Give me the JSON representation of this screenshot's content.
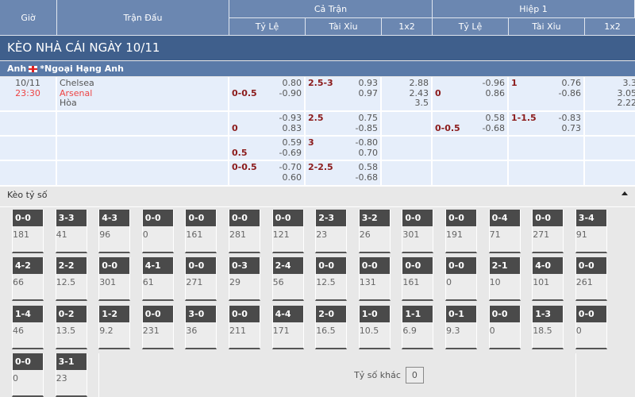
{
  "header": {
    "gio": "Giờ",
    "tran_dau": "Trận Đấu",
    "ca_tran": "Cả Trận",
    "hiep1": "Hiệp 1",
    "ty_le": "Tỷ Lệ",
    "tai_xiu": "Tài Xỉu",
    "x12": "1x2"
  },
  "title": "KÈO NHÀ CÁI NGÀY 10/11",
  "league": {
    "country": "Anh",
    "name": "*Ngoại Hạng Anh"
  },
  "match": {
    "date": "10/11",
    "time": "23:30",
    "home": "Chelsea",
    "away": "Arsenal",
    "draw": "Hòa"
  },
  "rows": [
    {
      "ft_hcap": {
        "top": "",
        "bottom": "0-0.5",
        "v1": "0.80",
        "v2": "-0.90"
      },
      "ft_ou": {
        "top": "2.5-3",
        "bottom": "",
        "v1": "0.93",
        "v2": "0.97"
      },
      "ft_1x2": [
        "2.88",
        "2.43",
        "3.5"
      ],
      "h1_hcap": {
        "top": "",
        "bottom": "0",
        "v1": "-0.96",
        "v2": "0.86"
      },
      "h1_ou": {
        "top": "1",
        "bottom": "",
        "v1": "0.76",
        "v2": "-0.86"
      },
      "h1_1x2": [
        "3.3",
        "3.05",
        "2.22"
      ]
    },
    {
      "ft_hcap": {
        "top": "",
        "bottom": "0",
        "v1": "-0.93",
        "v2": "0.83"
      },
      "ft_ou": {
        "top": "2.5",
        "bottom": "",
        "v1": "0.75",
        "v2": "-0.85"
      },
      "ft_1x2": [
        "",
        "",
        ""
      ],
      "h1_hcap": {
        "top": "",
        "bottom": "0-0.5",
        "v1": "0.58",
        "v2": "-0.68"
      },
      "h1_ou": {
        "top": "1-1.5",
        "bottom": "",
        "v1": "-0.83",
        "v2": "0.73"
      },
      "h1_1x2": [
        "",
        "",
        ""
      ]
    },
    {
      "ft_hcap": {
        "top": "",
        "bottom": "0.5",
        "v1": "0.59",
        "v2": "-0.69"
      },
      "ft_ou": {
        "top": "3",
        "bottom": "",
        "v1": "-0.80",
        "v2": "0.70"
      },
      "ft_1x2": [
        "",
        "",
        ""
      ],
      "h1_hcap": {
        "top": "",
        "bottom": "",
        "v1": "",
        "v2": ""
      },
      "h1_ou": {
        "top": "",
        "bottom": "",
        "v1": "",
        "v2": ""
      },
      "h1_1x2": [
        "",
        "",
        ""
      ]
    },
    {
      "ft_hcap": {
        "top": "0-0.5",
        "bottom": "",
        "v1": "-0.70",
        "v2": "0.60"
      },
      "ft_ou": {
        "top": "2-2.5",
        "bottom": "",
        "v1": "0.58",
        "v2": "-0.68"
      },
      "ft_1x2": [
        "",
        "",
        ""
      ],
      "h1_hcap": {
        "top": "",
        "bottom": "",
        "v1": "",
        "v2": ""
      },
      "h1_ou": {
        "top": "",
        "bottom": "",
        "v1": "",
        "v2": ""
      },
      "h1_1x2": [
        "",
        "",
        ""
      ]
    }
  ],
  "score_section": {
    "title": "Kèo tỷ số",
    "other_label": "Tỷ số khác",
    "other_value": "0"
  },
  "scores": [
    [
      "0-0",
      "181"
    ],
    [
      "3-3",
      "41"
    ],
    [
      "4-3",
      "96"
    ],
    [
      "0-0",
      "0"
    ],
    [
      "0-0",
      "161"
    ],
    [
      "0-0",
      "281"
    ],
    [
      "0-0",
      "121"
    ],
    [
      "2-3",
      "23"
    ],
    [
      "3-2",
      "26"
    ],
    [
      "0-0",
      "301"
    ],
    [
      "0-0",
      "191"
    ],
    [
      "0-4",
      "71"
    ],
    [
      "0-0",
      "271"
    ],
    [
      "3-4",
      "91"
    ],
    [
      "4-2",
      "66"
    ],
    [
      "2-2",
      "12.5"
    ],
    [
      "0-0",
      "301"
    ],
    [
      "4-1",
      "61"
    ],
    [
      "0-0",
      "271"
    ],
    [
      "0-3",
      "29"
    ],
    [
      "2-4",
      "56"
    ],
    [
      "0-0",
      "12.5"
    ],
    [
      "0-0",
      "131"
    ],
    [
      "0-0",
      "161"
    ],
    [
      "0-0",
      "0"
    ],
    [
      "2-1",
      "10"
    ],
    [
      "4-0",
      "101"
    ],
    [
      "0-0",
      "261"
    ],
    [
      "1-4",
      "46"
    ],
    [
      "0-2",
      "13.5"
    ],
    [
      "1-2",
      "9.2"
    ],
    [
      "0-0",
      "231"
    ],
    [
      "3-0",
      "36"
    ],
    [
      "0-0",
      "211"
    ],
    [
      "4-4",
      "171"
    ],
    [
      "2-0",
      "16.5"
    ],
    [
      "1-0",
      "10.5"
    ],
    [
      "1-1",
      "6.9"
    ],
    [
      "0-1",
      "9.3"
    ],
    [
      "0-0",
      "0"
    ],
    [
      "1-3",
      "18.5"
    ],
    [
      "0-0",
      "0"
    ],
    [
      "0-0",
      "0"
    ],
    [
      "3-1",
      "23"
    ]
  ]
}
